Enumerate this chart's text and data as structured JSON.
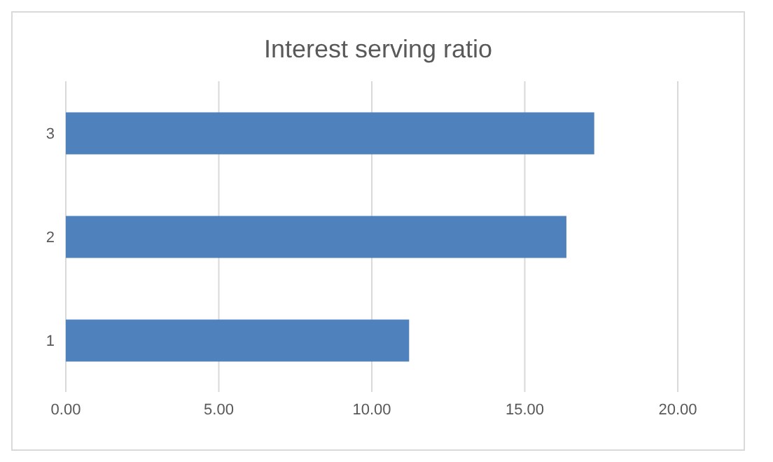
{
  "chart_data": {
    "type": "bar",
    "orientation": "horizontal",
    "title": "Interest serving ratio",
    "categories": [
      "3",
      "2",
      "1"
    ],
    "values": [
      17.27,
      16.36,
      11.22
    ],
    "color": "#4f81bd",
    "xlim": [
      0,
      20
    ],
    "xticks": [
      {
        "value": 0,
        "label": "0.00"
      },
      {
        "value": 5,
        "label": "5.00"
      },
      {
        "value": 10,
        "label": "10.00"
      },
      {
        "value": 15,
        "label": "15.00"
      },
      {
        "value": 20,
        "label": "20.00"
      }
    ],
    "grid": "x"
  }
}
